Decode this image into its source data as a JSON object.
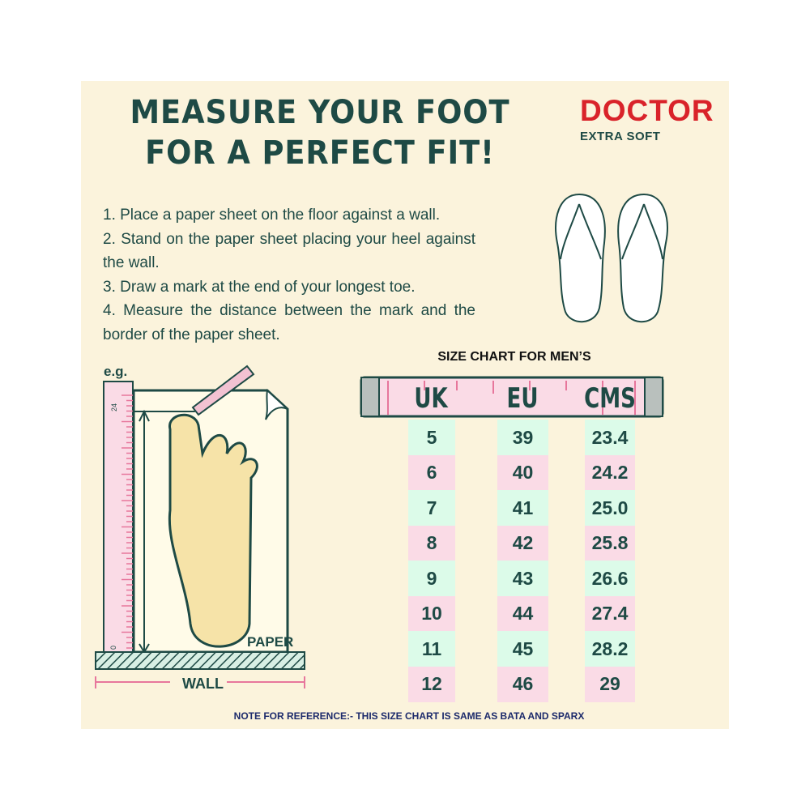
{
  "title": {
    "line1": "MEASURE YOUR FOOT",
    "line2": "FOR A PERFECT FIT!"
  },
  "brand": {
    "name": "DOCTOR",
    "tagline": "EXTRA SOFT",
    "color": "#d9232a"
  },
  "instructions": [
    "1. Place a paper sheet on the floor against a wall.",
    "2. Stand on the paper sheet placing your heel against the wall.",
    "3. Draw a mark at the end of your longest toe.",
    "4. Measure the distance between the mark and the border of the paper sheet."
  ],
  "illustration": {
    "eg": "e.g.",
    "ruler_top": "24",
    "ruler_bottom": "0",
    "paper": "PAPER",
    "wall": "WALL"
  },
  "size_chart": {
    "title": "SIZE CHART FOR MEN’S",
    "headers": [
      "UK",
      "EU",
      "CMS"
    ],
    "rows": [
      [
        "5",
        "39",
        "23.4"
      ],
      [
        "6",
        "40",
        "24.2"
      ],
      [
        "7",
        "41",
        "25.0"
      ],
      [
        "8",
        "42",
        "25.8"
      ],
      [
        "9",
        "43",
        "26.6"
      ],
      [
        "10",
        "44",
        "27.4"
      ],
      [
        "11",
        "45",
        "28.2"
      ],
      [
        "12",
        "46",
        "29"
      ]
    ]
  },
  "note": "NOTE FOR REFERENCE:- THIS SIZE CHART IS SAME AS BATA AND SPARX",
  "colors": {
    "text": "#1e4a45",
    "pink": "#fadbe6",
    "mint": "#dcfbe9",
    "background": "#fbf3dc"
  }
}
